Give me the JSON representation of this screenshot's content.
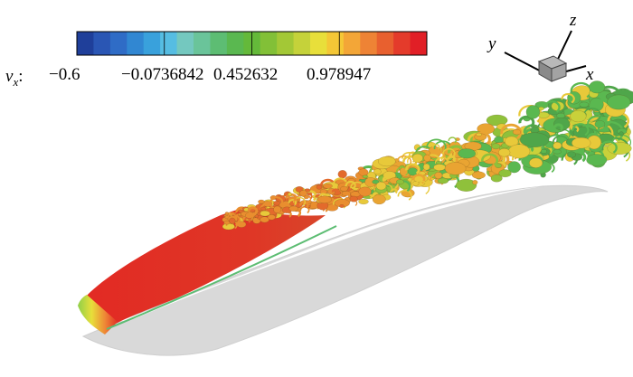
{
  "colorbar": {
    "variable": "v",
    "variable_subscript": "x",
    "separator": ":",
    "tick_labels": [
      "−0.6",
      "−0.0736842",
      "0.452632",
      "0.978947"
    ],
    "colors": [
      "#1f3f9a",
      "#2a56b4",
      "#2f6cc6",
      "#3187d2",
      "#39a1dc",
      "#56bde2",
      "#74c8bf",
      "#6ac49a",
      "#5dbd73",
      "#5ab850",
      "#64b93a",
      "#82c037",
      "#a3c836",
      "#c5d23a",
      "#e8df3a",
      "#f4c736",
      "#f3a637",
      "#ee8335",
      "#e8602f",
      "#e43b2b",
      "#e11f26"
    ]
  },
  "axes": {
    "x_label": "x",
    "y_label": "y",
    "z_label": "z"
  },
  "colors": {
    "body_surface": "#d9d9d9",
    "body_edge": "#c4c4c4",
    "stagnation_red": "#e13025",
    "vortex_green": "#4fb04a",
    "vortex_yellow": "#e8c93a",
    "vortex_orange": "#e98e2f"
  }
}
